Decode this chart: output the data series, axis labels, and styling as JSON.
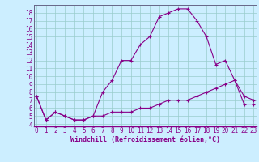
{
  "xlabel": "Windchill (Refroidissement éolien,°C)",
  "x": [
    0,
    1,
    2,
    3,
    4,
    5,
    6,
    7,
    8,
    9,
    10,
    11,
    12,
    13,
    14,
    15,
    16,
    17,
    18,
    19,
    20,
    21,
    22,
    23
  ],
  "line1": [
    7.5,
    4.5,
    5.5,
    5.0,
    4.5,
    4.5,
    5.0,
    8.0,
    9.5,
    12.0,
    12.0,
    14.0,
    15.0,
    17.5,
    18.0,
    18.5,
    18.5,
    17.0,
    15.0,
    11.5,
    12.0,
    9.5,
    7.5,
    7.0
  ],
  "line2": [
    7.5,
    4.5,
    5.5,
    5.0,
    4.5,
    4.5,
    5.0,
    5.0,
    5.5,
    5.5,
    5.5,
    6.0,
    6.0,
    6.5,
    7.0,
    7.0,
    7.0,
    7.5,
    8.0,
    8.5,
    9.0,
    9.5,
    6.5,
    6.5
  ],
  "line_color": "#880088",
  "bg_color": "#cceeff",
  "grid_color": "#99cccc",
  "ylim_min": 4,
  "ylim_max": 19,
  "xlim_min": 0,
  "xlim_max": 23,
  "yticks": [
    4,
    5,
    6,
    7,
    8,
    9,
    10,
    11,
    12,
    13,
    14,
    15,
    16,
    17,
    18
  ],
  "xticks": [
    0,
    1,
    2,
    3,
    4,
    5,
    6,
    7,
    8,
    9,
    10,
    11,
    12,
    13,
    14,
    15,
    16,
    17,
    18,
    19,
    20,
    21,
    22,
    23
  ],
  "tick_fontsize": 5.5,
  "xlabel_fontsize": 6.0,
  "line_width": 0.8,
  "marker_size": 3.5
}
